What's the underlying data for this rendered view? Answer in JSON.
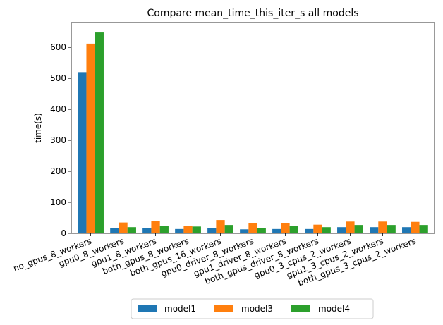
{
  "chart_data": {
    "type": "bar",
    "title": "Compare mean_time_this_iter_s all models",
    "xlabel": "",
    "ylabel": "time(s)",
    "ylim": [
      0,
      680
    ],
    "yticks": [
      0,
      100,
      200,
      300,
      400,
      500,
      600
    ],
    "grid": false,
    "legend_position": "bottom-center",
    "categories": [
      "no_gpus_8_workers",
      "gpu0_8_workers",
      "gpu1_8_workers",
      "both_gpus_8_workers",
      "both_gpus_16_workers",
      "gpu0_driver_8_workers",
      "gpu1_driver_8_workers",
      "both_gpus_driver_8_workers",
      "gpu0_3_cpus_2_workers",
      "gpu1_3_cpus_2_workers",
      "both_gpus_3_cpus_2_workers"
    ],
    "series": [
      {
        "name": "model1",
        "color": "#1f77b4",
        "values": [
          520,
          16,
          16,
          14,
          18,
          13,
          14,
          14,
          20,
          20,
          20
        ]
      },
      {
        "name": "model3",
        "color": "#ff7f0e",
        "values": [
          612,
          35,
          39,
          25,
          43,
          32,
          34,
          28,
          38,
          38,
          37
        ]
      },
      {
        "name": "model4",
        "color": "#2ca02c",
        "values": [
          648,
          20,
          24,
          22,
          27,
          18,
          23,
          20,
          27,
          27,
          27
        ]
      }
    ]
  }
}
